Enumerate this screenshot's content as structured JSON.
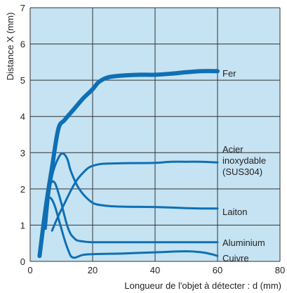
{
  "chart_data": {
    "type": "line",
    "title": "",
    "xlabel": "Longueur de l'objet à détecter : d (mm)",
    "ylabel": "Distance X (mm)",
    "xlim": [
      0,
      80
    ],
    "ylim": [
      0,
      7
    ],
    "xticks": [
      "0",
      "20",
      "40",
      "60",
      "80"
    ],
    "yticks": [
      "0",
      "1",
      "2",
      "3",
      "4",
      "5",
      "6",
      "7"
    ],
    "grid": true,
    "background": "#c5e3f2",
    "line_color": "#0f6fb5",
    "series": [
      {
        "name": "Fer",
        "label_lines": [
          "Fer"
        ],
        "thick": true,
        "points": [
          [
            3,
            0.15
          ],
          [
            5,
            1.5
          ],
          [
            7,
            2.6
          ],
          [
            9,
            3.65
          ],
          [
            11,
            3.9
          ],
          [
            14,
            4.2
          ],
          [
            17,
            4.5
          ],
          [
            20,
            4.75
          ],
          [
            22,
            4.95
          ],
          [
            25,
            5.08
          ],
          [
            30,
            5.13
          ],
          [
            35,
            5.15
          ],
          [
            40,
            5.15
          ],
          [
            45,
            5.18
          ],
          [
            50,
            5.22
          ],
          [
            55,
            5.25
          ],
          [
            60,
            5.25
          ]
        ]
      },
      {
        "name": "Acier inoxydable (SUS304)",
        "label_lines": [
          "Acier",
          "inoxydable",
          "(SUS304)"
        ],
        "thick": false,
        "points": [
          [
            7,
            0.85
          ],
          [
            9,
            1.25
          ],
          [
            11,
            1.6
          ],
          [
            13,
            1.95
          ],
          [
            15,
            2.25
          ],
          [
            17,
            2.45
          ],
          [
            19,
            2.6
          ],
          [
            22,
            2.68
          ],
          [
            25,
            2.7
          ],
          [
            30,
            2.71
          ],
          [
            40,
            2.72
          ],
          [
            45,
            2.75
          ],
          [
            50,
            2.75
          ],
          [
            55,
            2.75
          ],
          [
            60,
            2.73
          ]
        ]
      },
      {
        "name": "Laiton",
        "label_lines": [
          "Laiton"
        ],
        "thick": false,
        "points": [
          [
            5,
            0.9
          ],
          [
            6,
            1.8
          ],
          [
            7,
            2.35
          ],
          [
            8,
            2.65
          ],
          [
            9,
            2.85
          ],
          [
            10,
            2.97
          ],
          [
            11,
            2.95
          ],
          [
            12,
            2.8
          ],
          [
            13,
            2.5
          ],
          [
            15,
            2.1
          ],
          [
            17,
            1.85
          ],
          [
            19,
            1.68
          ],
          [
            21,
            1.58
          ],
          [
            25,
            1.53
          ],
          [
            30,
            1.51
          ],
          [
            40,
            1.5
          ],
          [
            50,
            1.47
          ],
          [
            55,
            1.46
          ],
          [
            60,
            1.46
          ]
        ]
      },
      {
        "name": "Aluminium",
        "label_lines": [
          "Aluminium"
        ],
        "thick": false,
        "points": [
          [
            5,
            1.3
          ],
          [
            6,
            2.0
          ],
          [
            7,
            2.2
          ],
          [
            8,
            2.15
          ],
          [
            9,
            1.9
          ],
          [
            10,
            1.6
          ],
          [
            11,
            1.25
          ],
          [
            12,
            0.95
          ],
          [
            13,
            0.75
          ],
          [
            14,
            0.65
          ],
          [
            15,
            0.58
          ],
          [
            17,
            0.55
          ],
          [
            20,
            0.53
          ],
          [
            30,
            0.53
          ],
          [
            40,
            0.53
          ],
          [
            50,
            0.53
          ],
          [
            60,
            0.53
          ]
        ]
      },
      {
        "name": "Cuivre",
        "label_lines": [
          "Cuivre"
        ],
        "thick": false,
        "points": [
          [
            5,
            1.5
          ],
          [
            6,
            1.75
          ],
          [
            7,
            1.7
          ],
          [
            8,
            1.5
          ],
          [
            9,
            1.2
          ],
          [
            10,
            0.9
          ],
          [
            11,
            0.6
          ],
          [
            12,
            0.35
          ],
          [
            13,
            0.15
          ],
          [
            14,
            0.1
          ],
          [
            15,
            0.12
          ],
          [
            17,
            0.18
          ],
          [
            20,
            0.2
          ],
          [
            30,
            0.22
          ],
          [
            40,
            0.25
          ],
          [
            50,
            0.28
          ],
          [
            55,
            0.25
          ],
          [
            58,
            0.2
          ],
          [
            60,
            0.15
          ]
        ]
      }
    ]
  }
}
